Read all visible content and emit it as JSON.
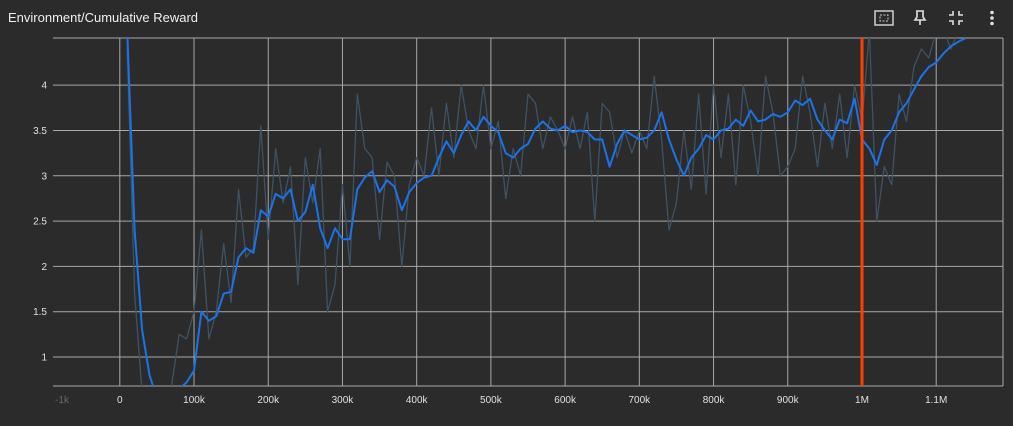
{
  "header": {
    "title": "Environment/Cumulative Reward",
    "icons": [
      "fit-domain-icon",
      "pin-icon",
      "collapse-icon",
      "more-vert-icon"
    ]
  },
  "colors": {
    "background": "#2b2b2b",
    "grid": "#a8a8a8",
    "smoothed": "#1a73e8",
    "raw": "#3f5264",
    "cursor": "#ff3d00"
  },
  "chart_data": {
    "type": "line",
    "title": "Environment/Cumulative Reward",
    "xlim": [
      -90000,
      1190000
    ],
    "ylim": [
      0.68,
      4.52
    ],
    "x_ticks": [
      0,
      100000,
      200000,
      300000,
      400000,
      500000,
      600000,
      700000,
      800000,
      900000,
      1000000,
      1100000
    ],
    "x_tick_labels": [
      "0",
      "100k",
      "200k",
      "300k",
      "400k",
      "500k",
      "600k",
      "700k",
      "800k",
      "900k",
      "1M",
      "1.1M"
    ],
    "x_edge_labels": [
      "-1k"
    ],
    "y_ticks": [
      1,
      1.5,
      2,
      2.5,
      3,
      3.5,
      4
    ],
    "y_tick_labels": [
      "1",
      "1.5",
      "2",
      "2.5",
      "3",
      "3.5",
      "4"
    ],
    "grid": true,
    "cursor_x": 1000000,
    "series": [
      {
        "role": "raw",
        "x": [
          10000,
          20000,
          30000,
          40000,
          50000,
          60000,
          70000,
          80000,
          90000,
          100000,
          110000,
          120000,
          130000,
          140000,
          150000,
          160000,
          170000,
          180000,
          190000,
          200000,
          210000,
          220000,
          230000,
          240000,
          250000,
          260000,
          270000,
          280000,
          290000,
          300000,
          310000,
          320000,
          330000,
          340000,
          350000,
          360000,
          370000,
          380000,
          390000,
          400000,
          410000,
          420000,
          430000,
          440000,
          450000,
          460000,
          470000,
          480000,
          490000,
          500000,
          510000,
          520000,
          530000,
          540000,
          550000,
          560000,
          570000,
          580000,
          590000,
          600000,
          610000,
          620000,
          630000,
          640000,
          650000,
          660000,
          670000,
          680000,
          690000,
          700000,
          710000,
          720000,
          730000,
          740000,
          750000,
          760000,
          770000,
          780000,
          790000,
          800000,
          810000,
          820000,
          830000,
          840000,
          850000,
          860000,
          870000,
          880000,
          890000,
          900000,
          910000,
          920000,
          930000,
          940000,
          950000,
          960000,
          970000,
          980000,
          990000,
          1000000,
          1010000,
          1020000,
          1030000,
          1040000,
          1050000,
          1060000,
          1070000,
          1080000,
          1090000,
          1100000,
          1110000,
          1120000,
          1130000,
          1140000
        ],
        "values": [
          4.4,
          1.7,
          0.6,
          0.5,
          0.55,
          0.4,
          0.7,
          1.25,
          1.2,
          1.5,
          2.4,
          1.2,
          1.5,
          2.25,
          1.6,
          2.85,
          2.1,
          2.2,
          3.55,
          2.3,
          3.3,
          2.7,
          3.1,
          1.8,
          3.2,
          2.7,
          3.3,
          1.5,
          1.8,
          2.9,
          2.0,
          3.9,
          3.3,
          3.2,
          2.3,
          3.15,
          3.0,
          2.0,
          2.9,
          3.2,
          3.0,
          3.75,
          3.0,
          3.8,
          3.2,
          4.0,
          3.5,
          3.3,
          4.0,
          3.3,
          3.6,
          2.75,
          3.3,
          3.0,
          3.9,
          3.8,
          3.3,
          3.65,
          3.5,
          3.3,
          3.65,
          3.3,
          3.7,
          2.5,
          3.8,
          3.7,
          3.2,
          3.5,
          3.25,
          3.5,
          3.3,
          4.1,
          3.4,
          2.4,
          2.7,
          3.5,
          2.85,
          3.9,
          2.8,
          4.0,
          3.2,
          3.9,
          2.9,
          4.0,
          3.6,
          3.0,
          4.1,
          3.7,
          3.0,
          3.1,
          3.3,
          4.1,
          3.7,
          3.1,
          3.8,
          3.3,
          3.9,
          3.2,
          4.0,
          3.6,
          4.6,
          2.5,
          3.1,
          2.9,
          3.9,
          3.6,
          4.2,
          4.4,
          4.3,
          4.6,
          4.6,
          4.4,
          4.6,
          4.55
        ]
      },
      {
        "role": "smoothed",
        "x": [
          10000,
          20000,
          30000,
          40000,
          50000,
          60000,
          70000,
          80000,
          90000,
          100000,
          110000,
          120000,
          130000,
          140000,
          150000,
          160000,
          170000,
          180000,
          190000,
          200000,
          210000,
          220000,
          230000,
          240000,
          250000,
          260000,
          270000,
          280000,
          290000,
          300000,
          310000,
          320000,
          330000,
          340000,
          350000,
          360000,
          370000,
          380000,
          390000,
          400000,
          410000,
          420000,
          430000,
          440000,
          450000,
          460000,
          470000,
          480000,
          490000,
          500000,
          510000,
          520000,
          530000,
          540000,
          550000,
          560000,
          570000,
          580000,
          590000,
          600000,
          610000,
          620000,
          630000,
          640000,
          650000,
          660000,
          670000,
          680000,
          690000,
          700000,
          710000,
          720000,
          730000,
          740000,
          750000,
          760000,
          770000,
          780000,
          790000,
          800000,
          810000,
          820000,
          830000,
          840000,
          850000,
          860000,
          870000,
          880000,
          890000,
          900000,
          910000,
          920000,
          930000,
          940000,
          950000,
          960000,
          970000,
          980000,
          990000,
          1000000,
          1010000,
          1020000,
          1030000,
          1040000,
          1050000,
          1060000,
          1070000,
          1080000,
          1090000,
          1100000,
          1110000,
          1120000,
          1130000,
          1140000
        ],
        "values": [
          4.6,
          2.4,
          1.3,
          0.8,
          0.55,
          0.5,
          0.55,
          0.65,
          0.72,
          0.85,
          1.5,
          1.4,
          1.45,
          1.7,
          1.72,
          2.1,
          2.2,
          2.15,
          2.62,
          2.55,
          2.8,
          2.75,
          2.85,
          2.5,
          2.6,
          2.9,
          2.42,
          2.2,
          2.42,
          2.3,
          2.3,
          2.85,
          2.98,
          3.05,
          2.82,
          2.95,
          2.88,
          2.62,
          2.82,
          2.92,
          2.98,
          3.0,
          3.2,
          3.38,
          3.25,
          3.45,
          3.6,
          3.5,
          3.65,
          3.55,
          3.48,
          3.25,
          3.2,
          3.3,
          3.35,
          3.52,
          3.6,
          3.52,
          3.5,
          3.55,
          3.48,
          3.5,
          3.48,
          3.4,
          3.4,
          3.1,
          3.35,
          3.5,
          3.45,
          3.4,
          3.42,
          3.5,
          3.7,
          3.4,
          3.18,
          3.0,
          3.2,
          3.3,
          3.45,
          3.4,
          3.5,
          3.52,
          3.62,
          3.55,
          3.72,
          3.6,
          3.62,
          3.68,
          3.65,
          3.7,
          3.83,
          3.78,
          3.85,
          3.62,
          3.5,
          3.4,
          3.62,
          3.58,
          3.85,
          3.4,
          3.3,
          3.12,
          3.4,
          3.5,
          3.7,
          3.8,
          3.95,
          4.1,
          4.2,
          4.25,
          4.35,
          4.43,
          4.48,
          4.52
        ]
      }
    ]
  }
}
